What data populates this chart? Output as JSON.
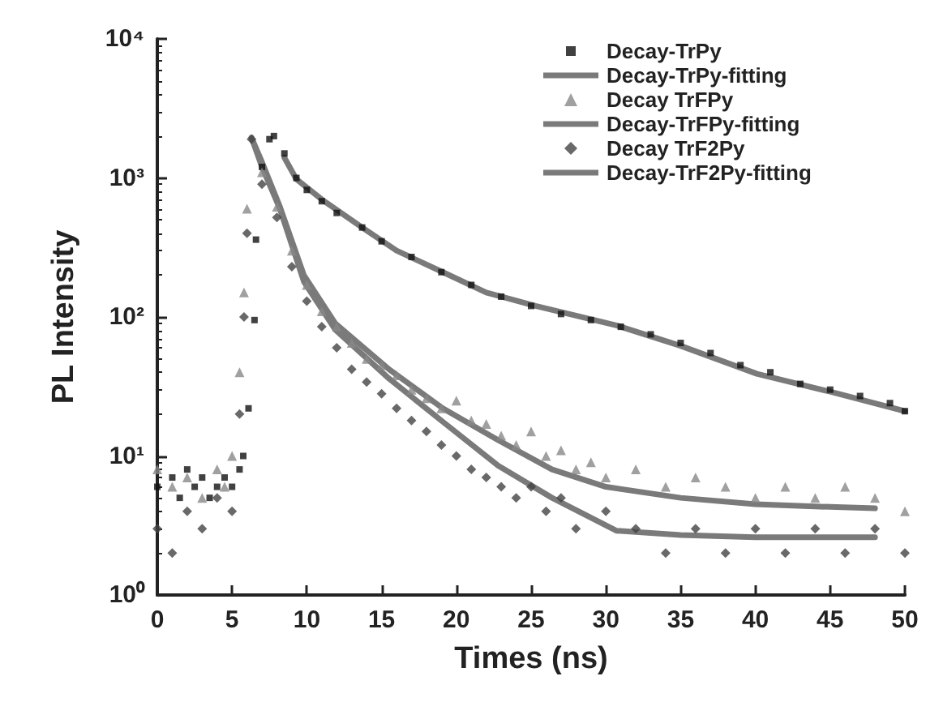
{
  "chart_data": {
    "type": "scatter",
    "xlabel": "Times (ns)",
    "ylabel": "PL Intensity",
    "log": "y",
    "grid": false,
    "legend": "top right",
    "xlim": [
      0,
      50
    ],
    "xticks": [
      0,
      5,
      10,
      15,
      20,
      25,
      30,
      35,
      40,
      45,
      50
    ],
    "ylim": [
      1,
      10000
    ],
    "yticks": [
      {
        "value": 1,
        "label": "10⁰"
      },
      {
        "value": 10,
        "label": "10¹"
      },
      {
        "value": 100,
        "label": "10²"
      },
      {
        "value": 1000,
        "label": "10³"
      },
      {
        "value": 10000,
        "label": "10⁴"
      }
    ],
    "series": [
      {
        "name": "Decay-TrPy",
        "marker": "square",
        "color": "#111111",
        "x": [
          0,
          1,
          1.5,
          2,
          2.5,
          3,
          3.5,
          4,
          4.5,
          5,
          5.5,
          5.75,
          6.1,
          6.5,
          6.6,
          7,
          7.5,
          7.8,
          8.5,
          9.3,
          10,
          11,
          12,
          13.7,
          15,
          17,
          19,
          21,
          23,
          25,
          27,
          29,
          31,
          33,
          35,
          37,
          39,
          41,
          43,
          45,
          47,
          49,
          50
        ],
        "values": [
          6,
          7,
          5,
          8,
          6,
          7,
          5,
          6,
          7,
          6,
          8,
          10,
          22,
          95,
          360,
          1200,
          1900,
          2000,
          1500,
          1000,
          820,
          680,
          560,
          440,
          350,
          270,
          210,
          170,
          140,
          120,
          105,
          95,
          85,
          75,
          65,
          55,
          45,
          40,
          33,
          30,
          27,
          24,
          21
        ]
      },
      {
        "name": "Decay-TrPy-fitting",
        "type": "line",
        "marker": "none",
        "color": "#7a7a7a",
        "x": [
          8.5,
          9.3,
          11,
          13.7,
          16,
          19.1,
          22,
          25.3,
          30.7,
          35,
          40.1,
          45,
          50
        ],
        "values": [
          1400,
          980,
          700,
          440,
          300,
          210,
          150,
          120,
          87,
          62,
          39,
          29,
          21
        ]
      },
      {
        "name": "Decay TrFPy",
        "marker": "triangle",
        "color": "#888888",
        "x": [
          0,
          1,
          2,
          3,
          4,
          4.5,
          5,
          5.5,
          5.8,
          6,
          6.3,
          7,
          8,
          9,
          10,
          11,
          12,
          13,
          14,
          15,
          16,
          17,
          18,
          19,
          20,
          21,
          22,
          23,
          24,
          25,
          26,
          27,
          28,
          29,
          30,
          32,
          34,
          36,
          38,
          40,
          42,
          44,
          46,
          48,
          50
        ],
        "values": [
          8,
          6,
          7,
          5,
          8,
          6,
          10,
          40,
          150,
          600,
          null,
          1100,
          620,
          300,
          170,
          110,
          85,
          65,
          50,
          45,
          38,
          30,
          26,
          22,
          25,
          18,
          17,
          14,
          12,
          15,
          10,
          11,
          8,
          9,
          7,
          8,
          6,
          7,
          6,
          5,
          6,
          5,
          6,
          5,
          4
        ]
      },
      {
        "name": "Decay-TrFPy-fitting",
        "type": "line",
        "marker": "none",
        "color": "#7a7a7a",
        "x": [
          6.3,
          7,
          8.2,
          9.8,
          11.9,
          15.5,
          19.1,
          22.8,
          26.4,
          30,
          35,
          40,
          45,
          48
        ],
        "values": [
          1950,
          1300,
          620,
          200,
          90,
          42,
          22,
          13,
          8,
          6,
          5,
          4.5,
          4.3,
          4.2
        ]
      },
      {
        "name": "Decay TrF2Py",
        "marker": "diamond",
        "color": "#444444",
        "x": [
          0,
          1,
          2,
          3,
          4,
          5,
          5.5,
          5.8,
          6,
          6.3,
          7,
          8,
          9,
          10,
          11,
          12,
          13,
          14,
          15,
          16,
          17,
          18,
          19,
          20,
          21,
          22,
          23,
          24,
          25,
          26,
          27,
          28,
          30,
          32,
          34,
          36,
          38,
          40,
          42,
          44,
          46,
          48,
          50
        ],
        "values": [
          3,
          2,
          4,
          3,
          5,
          4,
          20,
          100,
          400,
          1900,
          900,
          520,
          230,
          130,
          85,
          60,
          42,
          34,
          28,
          22,
          18,
          15,
          12,
          10,
          8,
          7,
          6,
          5,
          6,
          4,
          5,
          3,
          4,
          3,
          2,
          3,
          2,
          3,
          2,
          3,
          2,
          3,
          2
        ]
      },
      {
        "name": "Decay-TrF2Py-fitting",
        "type": "line",
        "marker": "none",
        "color": "#7a7a7a",
        "x": [
          6.3,
          7,
          8.2,
          9.8,
          11.9,
          15.5,
          19.1,
          22.8,
          26.4,
          30.7,
          35,
          40,
          48
        ],
        "values": [
          1950,
          1200,
          600,
          180,
          81,
          36,
          17.6,
          8.5,
          5,
          2.9,
          2.7,
          2.6,
          2.6
        ]
      }
    ]
  }
}
